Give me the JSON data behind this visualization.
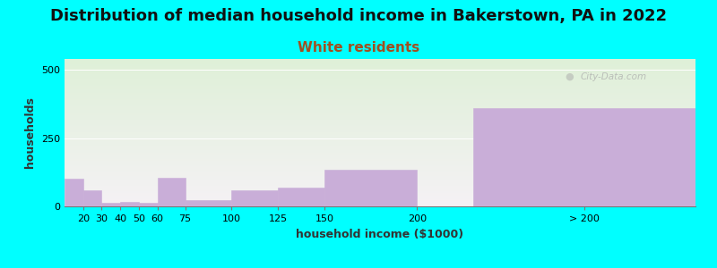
{
  "title": "Distribution of median household income in Bakerstown, PA in 2022",
  "subtitle": "White residents",
  "xlabel": "household income ($1000)",
  "ylabel": "households",
  "background_color": "#00FFFF",
  "bar_color": "#c9aed8",
  "bar_edge_color": "#c9aed8",
  "subtitle_color": "#a05020",
  "title_color": "#111111",
  "watermark": "City-Data.com",
  "categories": [
    "20",
    "30",
    "40",
    "50",
    "60",
    "75",
    "100",
    "125",
    "150",
    "200",
    "> 200"
  ],
  "bar_lefts": [
    10,
    20,
    30,
    40,
    50,
    60,
    75,
    100,
    125,
    150,
    230
  ],
  "bar_widths": [
    10,
    10,
    10,
    10,
    10,
    15,
    25,
    25,
    25,
    50,
    120
  ],
  "values": [
    100,
    60,
    12,
    15,
    12,
    105,
    22,
    60,
    70,
    135,
    360
  ],
  "xtick_positions": [
    20,
    30,
    40,
    50,
    60,
    75,
    100,
    125,
    150,
    200,
    290
  ],
  "xtick_labels": [
    "20",
    "30",
    "40",
    "50",
    "60",
    "75",
    "100",
    "125",
    "150",
    "200",
    "> 200"
  ],
  "xlim": [
    10,
    350
  ],
  "ylim": [
    0,
    540
  ],
  "yticks": [
    0,
    250,
    500
  ],
  "title_fontsize": 13,
  "subtitle_fontsize": 11,
  "axis_label_fontsize": 9,
  "tick_fontsize": 8
}
